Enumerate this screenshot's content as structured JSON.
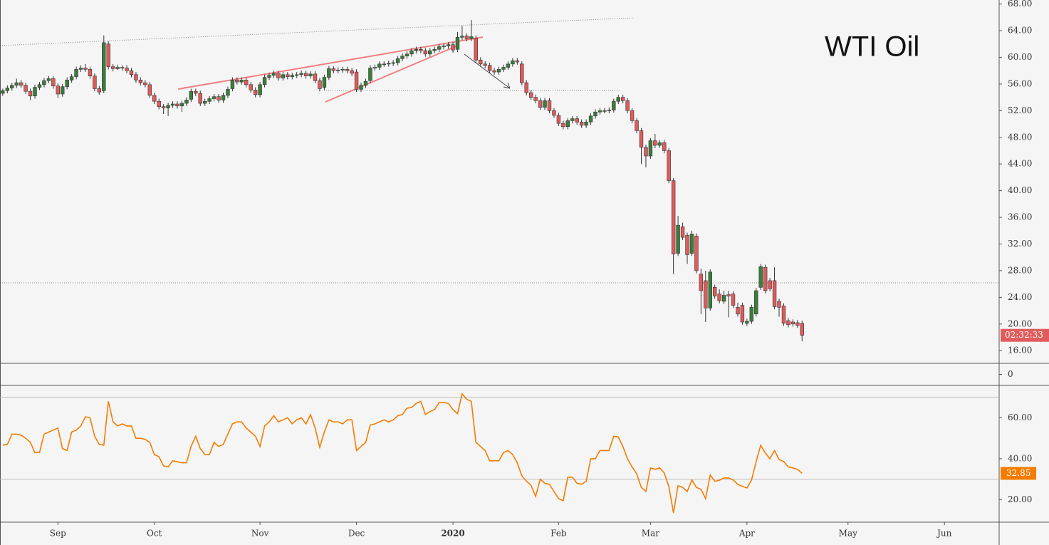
{
  "chart_data": [
    {
      "type": "candlestick",
      "title": "WTI Oil",
      "countdown": "02:32:33",
      "up_color": "#3b7d3b",
      "down_color": "#e05b5b",
      "xlim": [
        -0.6,
        216.9
      ],
      "xticks": [
        {
          "value": 12,
          "label": "Sep"
        },
        {
          "value": 33,
          "label": "Oct"
        },
        {
          "value": 56,
          "label": "Nov"
        },
        {
          "value": 77,
          "label": "Dec"
        },
        {
          "value": 98,
          "label": "2020"
        },
        {
          "value": 121,
          "label": "Feb"
        },
        {
          "value": 141,
          "label": "Mar"
        },
        {
          "value": 162,
          "label": "Apr"
        },
        {
          "value": 184,
          "label": "May"
        },
        {
          "value": 205,
          "label": "Jun"
        }
      ],
      "ylim": [
        14.1,
        68.6
      ],
      "yticks": [
        {
          "value": 16,
          "label": "16.00"
        },
        {
          "value": 20,
          "label": "20.00"
        },
        {
          "value": 24,
          "label": "24.00"
        },
        {
          "value": 28,
          "label": "28.00"
        },
        {
          "value": 32,
          "label": "32.00"
        },
        {
          "value": 36,
          "label": "36.00"
        },
        {
          "value": 40,
          "label": "40.00"
        },
        {
          "value": 44,
          "label": "44.00"
        },
        {
          "value": 48,
          "label": "48.00"
        },
        {
          "value": 52,
          "label": "52.00"
        },
        {
          "value": 56,
          "label": "56.00"
        },
        {
          "value": 60,
          "label": "60.00"
        },
        {
          "value": 64,
          "label": "64.00"
        },
        {
          "value": 68,
          "label": "68.00"
        }
      ],
      "open": [
        54.6,
        55.0,
        55.4,
        55.8,
        56.2,
        55.8,
        54.9,
        54.2,
        55.5,
        55.9,
        56.5,
        56.8,
        55.7,
        54.5,
        55.6,
        56.6,
        57.1,
        58.2,
        58.4,
        58.2,
        57.2,
        55.3,
        55.0,
        62.0,
        58.6,
        58.3,
        58.5,
        58.4,
        58.0,
        57.4,
        56.6,
        56.2,
        55.9,
        54.3,
        53.4,
        52.6,
        52.4,
        52.8,
        53.0,
        52.7,
        53.1,
        53.7,
        54.9,
        54.6,
        53.1,
        53.4,
        53.8,
        54.1,
        53.6,
        54.3,
        55.3,
        56.6,
        56.3,
        56.6,
        55.9,
        55.1,
        54.4,
        55.9,
        57.0,
        57.3,
        57.6,
        56.9,
        57.4,
        57.1,
        57.3,
        57.4,
        57.6,
        57.2,
        57.5,
        56.5,
        55.5,
        57.0,
        58.3,
        58.0,
        58.1,
        58.2,
        58.0,
        57.8,
        55.2,
        55.8,
        56.5,
        58.4,
        58.5,
        59.0,
        59.0,
        59.1,
        59.2,
        59.8,
        60.2,
        60.5,
        61.0,
        61.2,
        61.0,
        60.5,
        61.0,
        61.2,
        61.6,
        61.7,
        61.9,
        61.2,
        63.0,
        63.2,
        62.8,
        62.9,
        59.6,
        59.0,
        58.8,
        58.0,
        57.8,
        58.2,
        58.5,
        59.0,
        59.5,
        59.0,
        56.2,
        54.7,
        54.0,
        53.5,
        52.5,
        53.5,
        52.0,
        51.3,
        50.1,
        49.6,
        50.5,
        50.8,
        50.3,
        49.8,
        50.3,
        51.2,
        51.8,
        52.0,
        52.0,
        52.1,
        53.4,
        54.0,
        53.5,
        52.0,
        50.5,
        49.0,
        46.5,
        45.2,
        47.5,
        46.8,
        47.2,
        46.0,
        41.5,
        30.6,
        34.6,
        33.3,
        30.6,
        33.2,
        27.5,
        26.5,
        22.4,
        25.5,
        24.5,
        23.4,
        24.4,
        24.5,
        22.5,
        22.8,
        20.1,
        20.4,
        21.5,
        25.5,
        28.5,
        26.5,
        26.5,
        23.4,
        22.7,
        20.5,
        20.3,
        20.2,
        20.1
      ],
      "high": [
        55.3,
        55.8,
        56.2,
        56.8,
        56.6,
        56.2,
        55.3,
        55.9,
        56.3,
        56.9,
        57.2,
        57.2,
        56.1,
        56.0,
        57.0,
        57.5,
        58.6,
        58.8,
        59.0,
        58.6,
        57.6,
        55.7,
        63.3,
        62.4,
        59.0,
        58.9,
        58.8,
        58.8,
        58.4,
        57.8,
        57.0,
        56.6,
        56.3,
        54.7,
        53.8,
        53.0,
        53.2,
        53.4,
        53.4,
        53.5,
        54.0,
        55.3,
        55.3,
        55.0,
        53.8,
        54.2,
        54.5,
        54.5,
        54.7,
        55.6,
        57.0,
        57.0,
        57.0,
        57.0,
        56.3,
        55.5,
        56.3,
        57.4,
        57.7,
        58.0,
        58.0,
        57.8,
        57.8,
        57.7,
        57.8,
        58.0,
        58.0,
        57.9,
        57.9,
        56.9,
        57.4,
        58.7,
        58.7,
        58.5,
        58.6,
        58.6,
        58.4,
        58.2,
        56.2,
        56.8,
        58.8,
        58.9,
        59.4,
        59.4,
        59.5,
        59.6,
        60.2,
        60.6,
        60.9,
        61.4,
        61.6,
        61.6,
        61.4,
        61.4,
        61.6,
        62.0,
        62.1,
        62.3,
        62.3,
        63.8,
        64.7,
        63.6,
        65.6,
        63.3,
        60.0,
        59.4,
        59.2,
        58.4,
        58.6,
        58.9,
        59.4,
        59.9,
        59.9,
        59.4,
        56.6,
        55.1,
        54.4,
        53.9,
        53.9,
        53.9,
        52.4,
        51.7,
        50.5,
        50.9,
        51.2,
        51.2,
        50.7,
        50.7,
        51.6,
        52.2,
        52.4,
        52.4,
        52.5,
        53.8,
        54.4,
        54.4,
        53.9,
        52.4,
        50.9,
        49.4,
        46.9,
        47.9,
        48.5,
        47.6,
        47.6,
        46.4,
        41.9,
        36.2,
        35.2,
        33.7,
        34.0,
        33.6,
        28.3,
        28.0,
        28.2,
        25.9,
        25.2,
        25.0,
        25.0,
        24.9,
        23.2,
        23.2,
        20.8,
        22.9,
        25.4,
        29.0,
        28.9,
        26.9,
        28.5,
        23.8,
        23.1,
        20.9,
        20.7,
        20.6,
        20.5
      ],
      "low": [
        54.2,
        54.6,
        55.0,
        55.4,
        55.4,
        54.5,
        53.6,
        53.8,
        55.1,
        55.5,
        56.1,
        55.3,
        53.9,
        54.1,
        55.2,
        56.2,
        56.7,
        57.8,
        57.8,
        56.8,
        54.9,
        54.4,
        54.6,
        58.2,
        57.9,
        58.1,
        58.0,
        57.6,
        57.0,
        56.2,
        55.8,
        55.5,
        53.9,
        53.0,
        52.2,
        51.5,
        51.2,
        52.4,
        52.3,
        51.8,
        52.7,
        53.3,
        54.2,
        52.7,
        52.7,
        53.0,
        53.4,
        53.2,
        53.2,
        53.9,
        54.9,
        55.9,
        55.9,
        55.5,
        54.7,
        54.0,
        54.0,
        55.5,
        56.6,
        56.9,
        56.5,
        56.5,
        56.7,
        56.7,
        56.9,
        57.0,
        56.8,
        56.8,
        56.1,
        54.9,
        55.1,
        56.6,
        57.6,
        57.6,
        57.7,
        57.6,
        57.2,
        54.8,
        54.8,
        55.4,
        56.1,
        58.0,
        58.1,
        58.6,
        58.6,
        58.7,
        58.8,
        59.4,
        59.8,
        60.1,
        60.6,
        60.6,
        60.1,
        60.1,
        60.6,
        60.8,
        61.2,
        61.3,
        60.7,
        60.8,
        62.6,
        62.4,
        62.4,
        59.2,
        58.6,
        58.4,
        57.6,
        57.4,
        57.4,
        57.8,
        58.1,
        58.6,
        58.9,
        55.8,
        54.3,
        53.6,
        53.1,
        52.1,
        52.1,
        51.6,
        50.9,
        49.7,
        49.2,
        49.2,
        50.1,
        49.9,
        49.4,
        49.4,
        49.9,
        50.8,
        51.4,
        51.6,
        51.6,
        51.7,
        53.0,
        53.1,
        51.6,
        50.1,
        48.6,
        44.0,
        43.5,
        44.8,
        46.4,
        46.4,
        45.6,
        41.1,
        27.5,
        30.2,
        32.6,
        29.0,
        30.2,
        27.6,
        21.5,
        20.3,
        22.0,
        23.8,
        23.1,
        23.0,
        21.0,
        22.4,
        21.1,
        19.9,
        19.7,
        20.0,
        21.1,
        25.1,
        24.6,
        24.9,
        22.2,
        21.1,
        19.7,
        19.5,
        19.6,
        19.4,
        17.4
      ],
      "close": [
        55.0,
        55.4,
        55.8,
        56.2,
        55.8,
        54.9,
        54.2,
        55.5,
        55.9,
        56.5,
        56.8,
        55.7,
        54.5,
        55.6,
        56.6,
        57.1,
        58.2,
        58.4,
        58.2,
        57.2,
        55.3,
        54.8,
        62.2,
        58.6,
        58.3,
        58.5,
        58.4,
        58.0,
        57.4,
        56.6,
        56.2,
        55.9,
        54.3,
        53.4,
        52.6,
        52.4,
        52.8,
        53.0,
        52.7,
        53.1,
        53.6,
        54.9,
        54.6,
        53.1,
        53.4,
        53.8,
        54.1,
        53.6,
        54.3,
        55.2,
        56.6,
        56.3,
        56.6,
        55.9,
        55.1,
        54.4,
        55.9,
        57.0,
        57.3,
        57.6,
        56.9,
        57.4,
        57.1,
        57.3,
        57.4,
        57.6,
        57.2,
        57.5,
        56.5,
        55.3,
        57.0,
        58.3,
        58.0,
        58.1,
        58.2,
        58.0,
        57.6,
        55.2,
        55.8,
        56.4,
        58.4,
        58.5,
        59.0,
        59.0,
        59.1,
        59.2,
        59.8,
        60.2,
        60.5,
        61.0,
        61.2,
        61.0,
        60.5,
        61.0,
        61.2,
        61.6,
        61.7,
        61.9,
        61.1,
        63.0,
        63.2,
        62.8,
        63.1,
        59.6,
        59.0,
        58.8,
        58.0,
        57.8,
        58.2,
        58.5,
        59.0,
        59.5,
        59.3,
        56.2,
        54.7,
        54.0,
        53.5,
        52.5,
        53.5,
        52.0,
        51.3,
        50.1,
        49.6,
        50.5,
        50.8,
        50.3,
        49.8,
        50.3,
        51.2,
        51.8,
        52.0,
        52.0,
        52.1,
        53.4,
        54.0,
        53.5,
        52.0,
        50.5,
        49.0,
        46.5,
        45.2,
        47.5,
        46.8,
        47.2,
        46.0,
        41.5,
        30.5,
        34.8,
        33.0,
        30.4,
        33.5,
        28.0,
        25.0,
        22.4,
        27.8,
        24.2,
        23.5,
        24.3,
        24.2,
        22.8,
        21.5,
        20.3,
        20.4,
        22.5,
        25.0,
        28.6,
        25.0,
        25.3,
        22.6,
        22.5,
        20.1,
        19.9,
        20.0,
        19.8,
        18.3
      ]
    },
    {
      "type": "empty",
      "ylim": [
        -1,
        1
      ],
      "yticks": [
        0
      ]
    },
    {
      "type": "line",
      "color": "#f57c00",
      "ylim": [
        9,
        75.8
      ],
      "bands": [
        70,
        30
      ],
      "yticks": [
        {
          "value": 20,
          "label": "20.00"
        },
        {
          "value": 40,
          "label": "40.00"
        },
        {
          "value": 60,
          "label": "60.00"
        }
      ],
      "values": [
        46.6,
        47,
        52,
        52,
        51.5,
        50,
        48,
        43,
        43,
        52,
        53,
        54,
        55,
        45,
        44,
        53,
        54,
        56,
        60.5,
        60,
        51,
        47,
        46.6,
        68,
        58,
        56,
        57,
        56,
        56,
        50,
        50,
        49.5,
        48,
        42,
        41,
        36.5,
        36,
        39,
        38.5,
        38,
        38,
        46,
        51,
        45,
        42,
        42,
        48,
        46,
        47,
        52,
        57,
        58,
        58,
        55,
        53,
        51,
        46,
        56,
        58,
        61,
        58,
        59,
        60,
        57,
        59,
        60,
        57,
        61.5,
        55,
        45.6,
        53,
        59,
        58,
        58,
        57,
        59,
        59,
        44,
        46,
        48,
        56.5,
        57,
        58,
        59,
        58,
        59,
        61,
        61.6,
        64.7,
        65,
        67,
        68,
        61.6,
        63,
        64,
        67.5,
        67.5,
        67,
        64,
        62,
        71.7,
        69,
        68,
        48,
        46,
        44,
        39,
        39,
        39,
        43,
        44,
        42,
        38,
        31.6,
        29,
        27,
        21.6,
        30,
        28,
        27.5,
        24,
        20.5,
        19.5,
        31,
        31,
        28,
        27.5,
        29,
        40,
        40,
        44,
        44,
        44,
        51,
        50.6,
        46,
        40,
        36,
        32.7,
        26,
        24,
        35.5,
        34.8,
        35.5,
        33,
        26.4,
        13.6,
        26.8,
        26,
        24,
        29.6,
        26,
        25,
        20.5,
        32,
        29,
        29.5,
        30.6,
        30.6,
        29.6,
        27.5,
        26.5,
        25.7,
        29.6,
        38.6,
        46.6,
        42.8,
        40,
        44,
        39.6,
        38.6,
        36,
        35.5,
        34.8,
        32.85
      ]
    }
  ]
}
